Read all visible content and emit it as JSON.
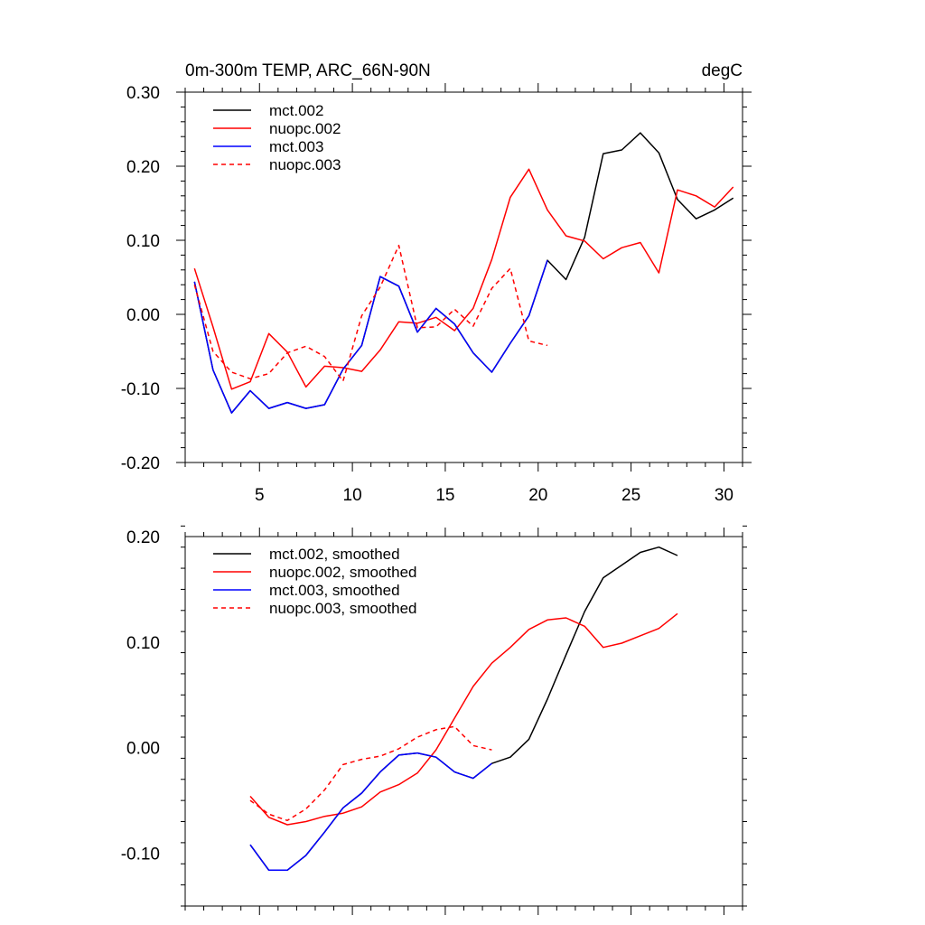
{
  "chart_data": [
    {
      "type": "line",
      "title": "0m-300m TEMP, ARC_66N-90N",
      "units": "degC",
      "xlabel": "",
      "ylabel": "",
      "xlim": [
        1,
        31
      ],
      "ylim": [
        -0.2,
        0.3
      ],
      "xticks": [
        5,
        10,
        15,
        20,
        25,
        30
      ],
      "xtick_labels": [
        "5",
        "10",
        "15",
        "20",
        "25",
        "30"
      ],
      "yticks": [
        -0.2,
        -0.1,
        0.0,
        0.1,
        0.2,
        0.3
      ],
      "ytick_labels": [
        "-0.20",
        "-0.10",
        "0.00",
        "0.10",
        "0.20",
        "0.30"
      ],
      "grid": false,
      "legend": "top-left",
      "series": [
        {
          "name": "mct.002",
          "color": "#000000",
          "dash": "solid",
          "x": [
            1.5,
            2.5,
            3.5,
            4.5,
            5.5,
            6.5,
            7.5,
            8.5,
            9.5,
            10.5,
            11.5,
            12.5,
            13.5,
            14.5,
            15.5,
            16.5,
            17.5,
            18.5,
            19.5,
            20.5,
            21.5,
            22.5,
            23.5,
            24.5,
            25.5,
            26.5,
            27.5,
            28.5,
            29.5,
            30.5
          ],
          "values": [
            0.044,
            -0.075,
            -0.133,
            -0.103,
            -0.127,
            -0.119,
            -0.127,
            -0.122,
            -0.074,
            -0.042,
            0.051,
            0.038,
            -0.024,
            0.008,
            -0.013,
            -0.052,
            -0.078,
            -0.039,
            -0.002,
            0.073,
            0.047,
            0.104,
            0.217,
            0.222,
            0.245,
            0.218,
            0.155,
            0.129,
            0.141,
            0.157
          ]
        },
        {
          "name": "nuopc.002",
          "color": "#ff0000",
          "dash": "solid",
          "x": [
            1.5,
            2.5,
            3.5,
            4.5,
            5.5,
            6.5,
            7.5,
            8.5,
            9.5,
            10.5,
            11.5,
            12.5,
            13.5,
            14.5,
            15.5,
            16.5,
            17.5,
            18.5,
            19.5,
            20.5,
            21.5,
            22.5,
            23.5,
            24.5,
            25.5,
            26.5,
            27.5,
            28.5,
            29.5,
            30.5
          ],
          "values": [
            0.062,
            -0.017,
            -0.101,
            -0.091,
            -0.026,
            -0.051,
            -0.098,
            -0.07,
            -0.072,
            -0.077,
            -0.048,
            -0.01,
            -0.012,
            -0.004,
            -0.022,
            0.008,
            0.074,
            0.158,
            0.196,
            0.141,
            0.106,
            0.099,
            0.075,
            0.09,
            0.097,
            0.056,
            0.168,
            0.16,
            0.145,
            0.172
          ]
        },
        {
          "name": "mct.003",
          "color": "#0000ff",
          "dash": "solid",
          "x": [
            1.5,
            2.5,
            3.5,
            4.5,
            5.5,
            6.5,
            7.5,
            8.5,
            9.5,
            10.5,
            11.5,
            12.5,
            13.5,
            14.5,
            15.5,
            16.5,
            17.5,
            18.5,
            19.5,
            20.5
          ],
          "values": [
            0.044,
            -0.075,
            -0.133,
            -0.103,
            -0.127,
            -0.119,
            -0.127,
            -0.122,
            -0.074,
            -0.042,
            0.051,
            0.038,
            -0.024,
            0.008,
            -0.013,
            -0.052,
            -0.078,
            -0.039,
            -0.002,
            0.073
          ]
        },
        {
          "name": "nuopc.003",
          "color": "#ff0000",
          "dash": "dashed",
          "x": [
            1.5,
            2.5,
            3.5,
            4.5,
            5.5,
            6.5,
            7.5,
            8.5,
            9.5,
            10.5,
            11.5,
            12.5,
            13.5,
            14.5,
            15.5,
            16.5,
            17.5,
            18.5,
            19.5,
            20.5
          ],
          "values": [
            0.04,
            -0.05,
            -0.078,
            -0.087,
            -0.08,
            -0.052,
            -0.043,
            -0.057,
            -0.09,
            -0.002,
            0.037,
            0.093,
            -0.018,
            -0.017,
            0.007,
            -0.016,
            0.035,
            0.062,
            -0.036,
            -0.042
          ]
        }
      ]
    },
    {
      "type": "line",
      "title": "",
      "xlabel": "",
      "ylabel": "",
      "xlim": [
        1,
        31
      ],
      "ylim": [
        -0.15,
        0.2
      ],
      "xticks": [
        5,
        10,
        15,
        20,
        25,
        30
      ],
      "xtick_labels": [
        "",
        "",
        "",
        "",
        "",
        ""
      ],
      "yticks": [
        -0.1,
        0.0,
        0.1,
        0.2
      ],
      "ytick_labels": [
        "-0.10",
        "0.00",
        "0.10",
        "0.20"
      ],
      "grid": false,
      "legend": "top-left",
      "series": [
        {
          "name": "mct.002, smoothed",
          "color": "#000000",
          "dash": "solid",
          "x": [
            4.5,
            5.5,
            6.5,
            7.5,
            8.5,
            9.5,
            10.5,
            11.5,
            12.5,
            13.5,
            14.5,
            15.5,
            16.5,
            17.5,
            18.5,
            19.5,
            20.5,
            21.5,
            22.5,
            23.5,
            24.5,
            25.5,
            26.5,
            27.5
          ],
          "values": [
            -0.092,
            -0.116,
            -0.116,
            -0.102,
            -0.08,
            -0.057,
            -0.043,
            -0.023,
            -0.007,
            -0.005,
            -0.009,
            -0.023,
            -0.029,
            -0.015,
            -0.009,
            0.008,
            0.046,
            0.088,
            0.129,
            0.161,
            0.173,
            0.185,
            0.19,
            0.182
          ]
        },
        {
          "name": "nuopc.002, smoothed",
          "color": "#ff0000",
          "dash": "solid",
          "x": [
            4.5,
            5.5,
            6.5,
            7.5,
            8.5,
            9.5,
            10.5,
            11.5,
            12.5,
            13.5,
            14.5,
            15.5,
            16.5,
            17.5,
            18.5,
            19.5,
            20.5,
            21.5,
            22.5,
            23.5,
            24.5,
            25.5,
            26.5,
            27.5
          ],
          "values": [
            -0.046,
            -0.066,
            -0.073,
            -0.07,
            -0.065,
            -0.062,
            -0.056,
            -0.042,
            -0.035,
            -0.024,
            -0.002,
            0.028,
            0.058,
            0.08,
            0.095,
            0.112,
            0.121,
            0.123,
            0.115,
            0.095,
            0.099,
            0.106,
            0.113,
            0.127
          ]
        },
        {
          "name": "mct.003, smoothed",
          "color": "#0000ff",
          "dash": "solid",
          "x": [
            4.5,
            5.5,
            6.5,
            7.5,
            8.5,
            9.5,
            10.5,
            11.5,
            12.5,
            13.5,
            14.5,
            15.5,
            16.5,
            17.5
          ],
          "values": [
            -0.092,
            -0.116,
            -0.116,
            -0.102,
            -0.08,
            -0.057,
            -0.043,
            -0.023,
            -0.007,
            -0.005,
            -0.009,
            -0.023,
            -0.029,
            -0.015
          ]
        },
        {
          "name": "nuopc.003, smoothed",
          "color": "#ff0000",
          "dash": "dashed",
          "x": [
            4.5,
            5.5,
            6.5,
            7.5,
            8.5,
            9.5,
            10.5,
            11.5,
            12.5,
            13.5,
            14.5,
            15.5,
            16.5,
            17.5
          ],
          "values": [
            -0.05,
            -0.063,
            -0.069,
            -0.058,
            -0.04,
            -0.016,
            -0.011,
            -0.008,
            -0.001,
            0.01,
            0.017,
            0.02,
            0.002,
            -0.002
          ]
        }
      ]
    }
  ]
}
